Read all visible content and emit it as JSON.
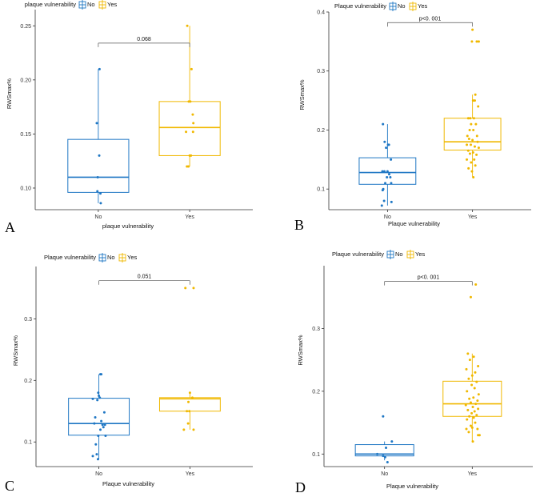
{
  "colors": {
    "no": "#1f77c4",
    "yes": "#f0b800",
    "axis": "#333333"
  },
  "chart_data": [
    {
      "type": "box",
      "panel_label": "A",
      "legend_title": "plaque vulnerability",
      "legend_labels": [
        "No",
        "Yes"
      ],
      "categories": [
        "No",
        "Yes"
      ],
      "xlabel": "plaque vulnerability",
      "ylabel": "RWSmax%",
      "ylim": [
        0.08,
        0.265
      ],
      "yticks": [
        0.1,
        0.15,
        0.2,
        0.25
      ],
      "ytick_labels": [
        "0.10",
        "0.15",
        "0.20",
        "0.25"
      ],
      "pvalue": "0.068",
      "series": [
        {
          "category": "No",
          "box": {
            "whisker_low": 0.086,
            "q1": 0.096,
            "median": 0.11,
            "q3": 0.145,
            "whisker_high": 0.21
          },
          "points": [
            [
              -0.05,
              0.16
            ],
            [
              0.03,
              0.13
            ],
            [
              -0.02,
              0.11
            ],
            [
              -0.03,
              0.097
            ],
            [
              0.07,
              0.095
            ],
            [
              0.08,
              0.086
            ],
            [
              0.04,
              0.21
            ]
          ]
        },
        {
          "category": "Yes",
          "box": {
            "whisker_low": 0.12,
            "q1": 0.13,
            "median": 0.156,
            "q3": 0.18,
            "whisker_high": 0.25
          },
          "points": [
            [
              -0.08,
              0.25
            ],
            [
              0.06,
              0.21
            ],
            [
              -0.03,
              0.18
            ],
            [
              0.02,
              0.18
            ],
            [
              0.1,
              0.168
            ],
            [
              0.12,
              0.16
            ],
            [
              -0.12,
              0.152
            ],
            [
              0.11,
              0.152
            ],
            [
              0.0,
              0.13
            ],
            [
              0.04,
              0.13
            ],
            [
              -0.09,
              0.12
            ],
            [
              -0.04,
              0.12
            ]
          ]
        }
      ]
    },
    {
      "type": "box",
      "panel_label": "B",
      "legend_title": "Plaque vulnerability",
      "legend_labels": [
        "No",
        "Yes"
      ],
      "categories": [
        "No",
        "Yes"
      ],
      "xlabel": "Plaque vulnerability",
      "ylabel": "RWSmax%",
      "ylim": [
        0.065,
        0.4
      ],
      "yticks": [
        0.1,
        0.2,
        0.3,
        0.4
      ],
      "ytick_labels": [
        "0.1",
        "0.2",
        "0.3",
        "0.4"
      ],
      "pvalue": "p<0. 001",
      "series": [
        {
          "category": "No",
          "box": {
            "whisker_low": 0.072,
            "q1": 0.108,
            "median": 0.128,
            "q3": 0.153,
            "whisker_high": 0.21
          },
          "points": [
            [
              -0.16,
              0.21
            ],
            [
              -0.1,
              0.18
            ],
            [
              0.02,
              0.175
            ],
            [
              0.05,
              0.175
            ],
            [
              -0.05,
              0.17
            ],
            [
              0.12,
              0.15
            ],
            [
              -0.18,
              0.13
            ],
            [
              -0.11,
              0.13
            ],
            [
              0.0,
              0.13
            ],
            [
              0.06,
              0.125
            ],
            [
              -0.02,
              0.12
            ],
            [
              0.1,
              0.12
            ],
            [
              0.13,
              0.11
            ],
            [
              -0.08,
              0.11
            ],
            [
              -0.15,
              0.1
            ],
            [
              -0.17,
              0.098
            ],
            [
              -0.12,
              0.08
            ],
            [
              0.14,
              0.078
            ],
            [
              -0.2,
              0.072
            ]
          ]
        },
        {
          "category": "Yes",
          "box": {
            "whisker_low": 0.12,
            "q1": 0.166,
            "median": 0.18,
            "q3": 0.22,
            "whisker_high": 0.26
          },
          "points": [
            [
              0.0,
              0.37
            ],
            [
              -0.02,
              0.35
            ],
            [
              0.15,
              0.35
            ],
            [
              0.22,
              0.35
            ],
            [
              0.1,
              0.26
            ],
            [
              0.02,
              0.25
            ],
            [
              0.08,
              0.25
            ],
            [
              0.2,
              0.24
            ],
            [
              -0.15,
              0.22
            ],
            [
              -0.08,
              0.22
            ],
            [
              0.05,
              0.22
            ],
            [
              -0.05,
              0.21
            ],
            [
              0.12,
              0.21
            ],
            [
              -0.1,
              0.2
            ],
            [
              0.03,
              0.2
            ],
            [
              -0.18,
              0.19
            ],
            [
              0.16,
              0.19
            ],
            [
              -0.12,
              0.185
            ],
            [
              0.0,
              0.183
            ],
            [
              0.18,
              0.18
            ],
            [
              -0.2,
              0.175
            ],
            [
              -0.06,
              0.175
            ],
            [
              0.08,
              0.172
            ],
            [
              0.22,
              0.17
            ],
            [
              -0.15,
              0.165
            ],
            [
              0.02,
              0.162
            ],
            [
              -0.09,
              0.16
            ],
            [
              0.14,
              0.158
            ],
            [
              -0.2,
              0.15
            ],
            [
              0.06,
              0.15
            ],
            [
              -0.05,
              0.145
            ],
            [
              0.1,
              0.14
            ],
            [
              -0.14,
              0.135
            ],
            [
              -0.02,
              0.13
            ],
            [
              0.03,
              0.12
            ]
          ]
        }
      ]
    },
    {
      "type": "box",
      "panel_label": "C",
      "legend_title": "Plaque vulnerability",
      "legend_labels": [
        "No",
        "Yes"
      ],
      "categories": [
        "No",
        "Yes"
      ],
      "xlabel": "Plaque vulnerability",
      "ylabel": "RWSmax%",
      "ylim": [
        0.06,
        0.385
      ],
      "yticks": [
        0.1,
        0.2,
        0.3
      ],
      "ytick_labels": [
        "0.1",
        "0.2",
        "0.3"
      ],
      "pvalue": "0.051",
      "series": [
        {
          "category": "No",
          "box": {
            "whisker_low": 0.072,
            "q1": 0.111,
            "median": 0.13,
            "q3": 0.171,
            "whisker_high": 0.21
          },
          "points": [
            [
              0.05,
              0.21
            ],
            [
              0.08,
              0.21
            ],
            [
              -0.02,
              0.18
            ],
            [
              0.0,
              0.175
            ],
            [
              0.03,
              0.172
            ],
            [
              -0.2,
              0.17
            ],
            [
              -0.05,
              0.168
            ],
            [
              0.18,
              0.148
            ],
            [
              -0.12,
              0.14
            ],
            [
              0.08,
              0.134
            ],
            [
              -0.15,
              0.13
            ],
            [
              0.12,
              0.128
            ],
            [
              0.2,
              0.128
            ],
            [
              0.15,
              0.124
            ],
            [
              0.05,
              0.12
            ],
            [
              0.22,
              0.11
            ],
            [
              -0.02,
              0.11
            ],
            [
              -0.1,
              0.096
            ],
            [
              -0.07,
              0.08
            ],
            [
              -0.2,
              0.077
            ],
            [
              -0.03,
              0.072
            ]
          ]
        },
        {
          "category": "Yes",
          "box": {
            "whisker_low": 0.12,
            "q1": 0.15,
            "median": 0.17,
            "q3": 0.172,
            "whisker_high": 0.18
          },
          "points": [
            [
              -0.15,
              0.35
            ],
            [
              0.12,
              0.35
            ],
            [
              0.0,
              0.18
            ],
            [
              0.08,
              0.172
            ],
            [
              -0.05,
              0.165
            ],
            [
              -0.1,
              0.15
            ],
            [
              -0.02,
              0.15
            ],
            [
              -0.06,
              0.13
            ],
            [
              -0.2,
              0.12
            ],
            [
              0.12,
              0.12
            ]
          ]
        }
      ]
    },
    {
      "type": "box",
      "panel_label": "D",
      "legend_title": "Plaque vulnerability",
      "legend_labels": [
        "No",
        "Yes"
      ],
      "categories": [
        "No",
        "Yes"
      ],
      "xlabel": "Plaque vulnerability",
      "ylabel": "RWSmax%",
      "ylim": [
        0.08,
        0.4
      ],
      "yticks": [
        0.1,
        0.2,
        0.3
      ],
      "ytick_labels": [
        "0.1",
        "0.2",
        "0.3"
      ],
      "pvalue": "p<0. 001",
      "series": [
        {
          "category": "No",
          "box": {
            "whisker_low": 0.09,
            "q1": 0.097,
            "median": 0.1,
            "q3": 0.115,
            "whisker_high": 0.12
          },
          "points": [
            [
              -0.05,
              0.16
            ],
            [
              0.25,
              0.12
            ],
            [
              0.05,
              0.11
            ],
            [
              -0.25,
              0.1
            ],
            [
              -0.05,
              0.097
            ],
            [
              0.02,
              0.095
            ],
            [
              0.1,
              0.087
            ]
          ]
        },
        {
          "category": "Yes",
          "box": {
            "whisker_low": 0.12,
            "q1": 0.16,
            "median": 0.18,
            "q3": 0.216,
            "whisker_high": 0.26
          },
          "points": [
            [
              0.12,
              0.37
            ],
            [
              -0.05,
              0.35
            ],
            [
              -0.15,
              0.26
            ],
            [
              0.05,
              0.255
            ],
            [
              -0.08,
              0.25
            ],
            [
              0.2,
              0.24
            ],
            [
              -0.2,
              0.235
            ],
            [
              0.1,
              0.23
            ],
            [
              0.0,
              0.225
            ],
            [
              -0.12,
              0.22
            ],
            [
              0.15,
              0.215
            ],
            [
              -0.02,
              0.21
            ],
            [
              0.08,
              0.205
            ],
            [
              -0.18,
              0.2
            ],
            [
              0.22,
              0.195
            ],
            [
              0.04,
              0.19
            ],
            [
              -0.1,
              0.188
            ],
            [
              0.18,
              0.185
            ],
            [
              -0.05,
              0.182
            ],
            [
              0.12,
              0.18
            ],
            [
              -0.22,
              0.178
            ],
            [
              0.02,
              0.175
            ],
            [
              0.2,
              0.172
            ],
            [
              -0.15,
              0.17
            ],
            [
              0.08,
              0.168
            ],
            [
              -0.02,
              0.165
            ],
            [
              0.15,
              0.162
            ],
            [
              -0.1,
              0.16
            ],
            [
              0.05,
              0.158
            ],
            [
              -0.18,
              0.155
            ],
            [
              0.1,
              0.15
            ],
            [
              -0.05,
              0.145
            ],
            [
              0.0,
              0.142
            ],
            [
              -0.2,
              0.14
            ],
            [
              0.18,
              0.14
            ],
            [
              -0.12,
              0.135
            ],
            [
              0.2,
              0.13
            ],
            [
              0.25,
              0.13
            ],
            [
              0.02,
              0.12
            ]
          ]
        }
      ]
    }
  ]
}
